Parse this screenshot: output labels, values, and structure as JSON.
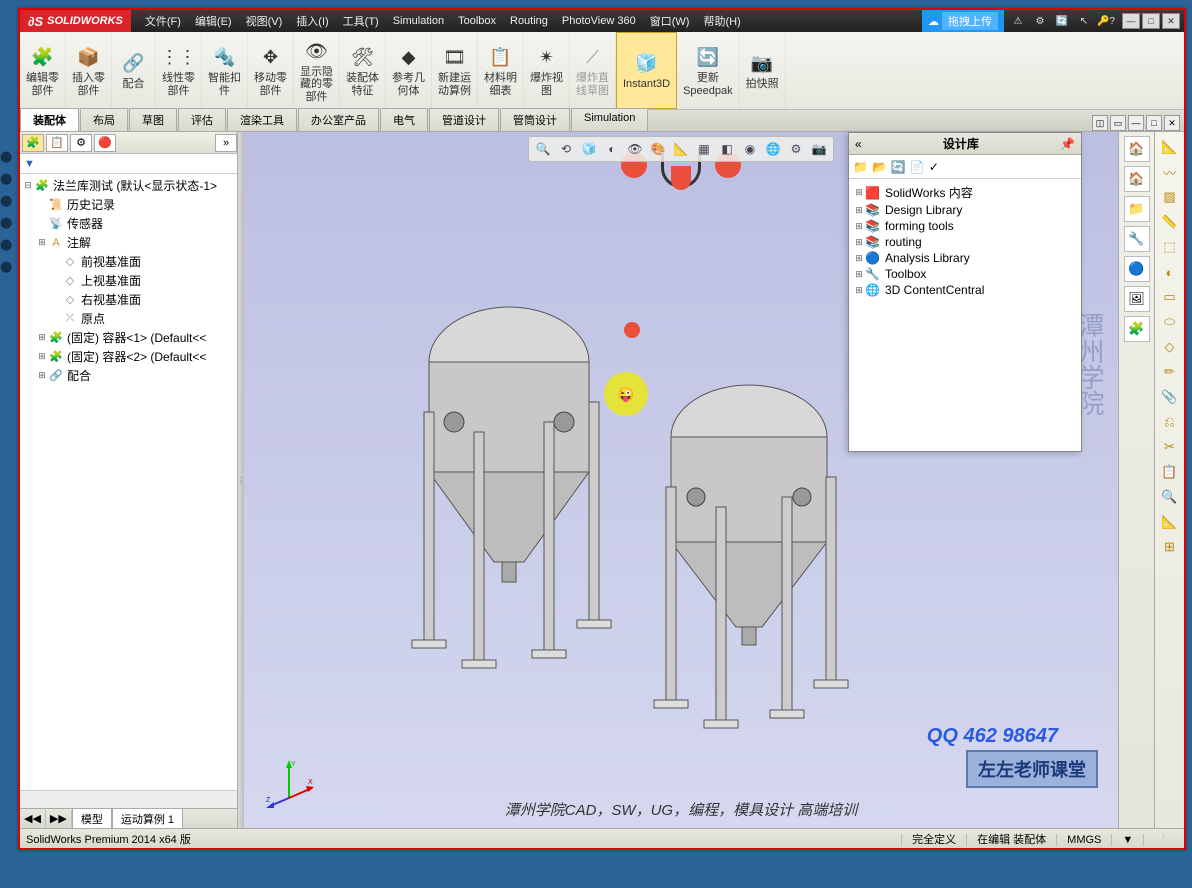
{
  "app": {
    "logo": "SOLIDWORKS"
  },
  "menubar": [
    {
      "l": "文件(F)"
    },
    {
      "l": "编辑(E)"
    },
    {
      "l": "视图(V)"
    },
    {
      "l": "插入(I)"
    },
    {
      "l": "工具(T)"
    },
    {
      "l": "Simulation"
    },
    {
      "l": "Toolbox"
    },
    {
      "l": "Routing"
    },
    {
      "l": "PhotoView 360"
    },
    {
      "l": "窗口(W)"
    },
    {
      "l": "帮助(H)"
    }
  ],
  "titlebar": {
    "upload": "拖拽上传"
  },
  "ribbon": [
    {
      "l": "编辑零\n部件",
      "ic": "🧩"
    },
    {
      "l": "插入零\n部件",
      "ic": "📦"
    },
    {
      "l": "配合",
      "ic": "🔗"
    },
    {
      "l": "线性零\n部件",
      "ic": "⋮⋮"
    },
    {
      "l": "智能扣\n件",
      "ic": "🔩"
    },
    {
      "l": "移动零\n部件",
      "ic": "✥"
    },
    {
      "l": "显示隐\n藏的零\n部件",
      "ic": "👁"
    },
    {
      "l": "装配体\n特征",
      "ic": "🛠"
    },
    {
      "l": "参考几\n何体",
      "ic": "◆"
    },
    {
      "l": "新建运\n动算例",
      "ic": "🎞"
    },
    {
      "l": "材料明\n细表",
      "ic": "📋"
    },
    {
      "l": "爆炸视\n图",
      "ic": "✴"
    },
    {
      "l": "爆炸直\n线草图",
      "ic": "⟋",
      "disabled": true
    },
    {
      "l": "Instant3D",
      "ic": "🧊",
      "active": true
    },
    {
      "l": "更新\nSpeedpak",
      "ic": "🔄"
    },
    {
      "l": "拍快照",
      "ic": "📷"
    }
  ],
  "cmdTabs": [
    {
      "l": "装配体",
      "active": true
    },
    {
      "l": "布局"
    },
    {
      "l": "草图"
    },
    {
      "l": "评估"
    },
    {
      "l": "渲染工具"
    },
    {
      "l": "办公室产品"
    },
    {
      "l": "电气"
    },
    {
      "l": "管道设计"
    },
    {
      "l": "管筒设计"
    },
    {
      "l": "Simulation"
    }
  ],
  "leftPanel": {
    "filterLabel": "▼",
    "root": "法兰库测试  (默认<显示状态-1>",
    "items": [
      {
        "ic": "📜",
        "l": "历史记录",
        "ind": 1,
        "color": "#c9972a"
      },
      {
        "ic": "📡",
        "l": "传感器",
        "ind": 1,
        "color": "#c9972a"
      },
      {
        "ic": "A",
        "l": "注解",
        "ind": 1,
        "exp": "⊞",
        "color": "#c9972a"
      },
      {
        "ic": "◇",
        "l": "前视基准面",
        "ind": 2,
        "color": "#888"
      },
      {
        "ic": "◇",
        "l": "上视基准面",
        "ind": 2,
        "color": "#888"
      },
      {
        "ic": "◇",
        "l": "右视基准面",
        "ind": 2,
        "color": "#888"
      },
      {
        "ic": "⤫",
        "l": "原点",
        "ind": 2,
        "color": "#888"
      },
      {
        "ic": "🧩",
        "l": "(固定) 容器<1> (Default<<",
        "ind": 1,
        "exp": "⊞",
        "color": "#c9972a"
      },
      {
        "ic": "🧩",
        "l": "(固定) 容器<2> (Default<<",
        "ind": 1,
        "exp": "⊞",
        "color": "#c9972a"
      },
      {
        "ic": "🔗",
        "l": "配合",
        "ind": 1,
        "exp": "⊞",
        "color": "#888"
      }
    ],
    "bottomTabs": [
      {
        "l": "模型",
        "active": true
      },
      {
        "l": "运动算例 1"
      }
    ]
  },
  "viewToolbar": [
    "🔍",
    "⟲",
    "🧊",
    "◐",
    "👁",
    "🎨",
    "📐",
    "▦",
    "◧",
    "◉",
    "🌐",
    "⚙",
    "📷"
  ],
  "rightSidebar": [
    "🏠",
    "🏠",
    "📁",
    "🔧",
    "🔵",
    "🖼",
    "🧩"
  ],
  "taskpane": {
    "title": "设计库",
    "toolbar": [
      "📁",
      "📂",
      "🔄",
      "📄",
      "✓"
    ],
    "items": [
      {
        "ic": "🟥",
        "l": "SolidWorks 内容",
        "color": "#d9252a"
      },
      {
        "ic": "📚",
        "l": "Design Library",
        "color": "#c9972a"
      },
      {
        "ic": "📚",
        "l": "forming tools",
        "color": "#c9972a"
      },
      {
        "ic": "📚",
        "l": "routing",
        "color": "#c9972a"
      },
      {
        "ic": "🔵",
        "l": "Analysis Library",
        "color": "#2a7ac9"
      },
      {
        "ic": "🔧",
        "l": "Toolbox",
        "color": "#666"
      },
      {
        "ic": "🌐",
        "l": "3D ContentCentral",
        "color": "#2a9ac9"
      }
    ]
  },
  "farRight": [
    "📐",
    "〰",
    "▨",
    "📏",
    "⬚",
    "◐",
    "▭",
    "⬭",
    "◇",
    "✏",
    "📎",
    "⎌",
    "✂",
    "📋",
    "🔍",
    "📐",
    "⊞"
  ],
  "statusbar": {
    "left": "SolidWorks Premium 2014 x64 版",
    "cells": [
      "完全定义",
      "在编辑 装配体",
      "MMGS",
      "▼",
      "❔"
    ]
  },
  "watermark": {
    "bottom": "潭州学院CAD，SW，UG，编程，模具设计 高端培训",
    "box": "左左老师课堂",
    "qq": "QQ 462 98647",
    "side": "潭州学院"
  },
  "colors": {
    "viewport_top": "#bcbfe2",
    "viewport_bot": "#d5d8ef",
    "accent": "#d9252a"
  }
}
